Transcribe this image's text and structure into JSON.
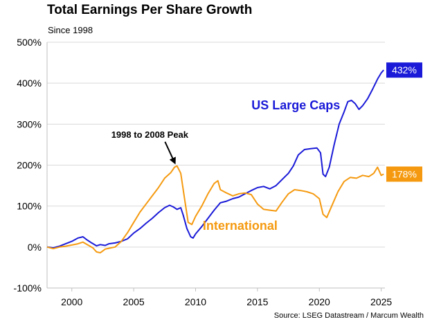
{
  "chart_data": {
    "type": "line",
    "title": "Total Earnings Per Share Growth",
    "subtitle": "Since 1998",
    "source": "Source: LSEG Datastream / Marcum Wealth",
    "xlabel": "",
    "ylabel": "",
    "xlim": [
      1998,
      2025.3
    ],
    "ylim": [
      -100,
      500
    ],
    "y_ticks": [
      {
        "value": 500,
        "label": "500%"
      },
      {
        "value": 400,
        "label": "400%"
      },
      {
        "value": 300,
        "label": "300%"
      },
      {
        "value": 200,
        "label": "200%"
      },
      {
        "value": 100,
        "label": "100%"
      },
      {
        "value": 0,
        "label": "0%"
      },
      {
        "value": -100,
        "label": "-100%"
      }
    ],
    "x_ticks": [
      {
        "value": 2000,
        "label": "2000"
      },
      {
        "value": 2005,
        "label": "2005"
      },
      {
        "value": 2010,
        "label": "2010"
      },
      {
        "value": 2015,
        "label": "2015"
      },
      {
        "value": 2020,
        "label": "2020"
      },
      {
        "value": 2025,
        "label": "2025"
      }
    ],
    "grid": true,
    "series": [
      {
        "name": "US Large Caps",
        "color": "#1a1ad8",
        "end_label": "432%",
        "points": [
          [
            1998.0,
            0
          ],
          [
            1998.5,
            -2
          ],
          [
            1999.0,
            2
          ],
          [
            1999.5,
            8
          ],
          [
            2000.0,
            14
          ],
          [
            2000.5,
            22
          ],
          [
            2000.9,
            25
          ],
          [
            2001.2,
            18
          ],
          [
            2001.6,
            10
          ],
          [
            2002.0,
            3
          ],
          [
            2002.3,
            6
          ],
          [
            2002.7,
            4
          ],
          [
            2003.0,
            8
          ],
          [
            2003.5,
            10
          ],
          [
            2004.0,
            14
          ],
          [
            2004.5,
            20
          ],
          [
            2005.0,
            34
          ],
          [
            2005.5,
            45
          ],
          [
            2006.0,
            58
          ],
          [
            2006.5,
            70
          ],
          [
            2007.0,
            84
          ],
          [
            2007.5,
            96
          ],
          [
            2007.9,
            102
          ],
          [
            2008.2,
            98
          ],
          [
            2008.5,
            92
          ],
          [
            2008.8,
            96
          ],
          [
            2009.0,
            78
          ],
          [
            2009.3,
            45
          ],
          [
            2009.6,
            25
          ],
          [
            2009.8,
            22
          ],
          [
            2010.0,
            32
          ],
          [
            2010.5,
            50
          ],
          [
            2011.0,
            70
          ],
          [
            2011.5,
            90
          ],
          [
            2012.0,
            108
          ],
          [
            2012.5,
            112
          ],
          [
            2013.0,
            118
          ],
          [
            2013.5,
            122
          ],
          [
            2014.0,
            130
          ],
          [
            2014.5,
            138
          ],
          [
            2015.0,
            145
          ],
          [
            2015.5,
            148
          ],
          [
            2016.0,
            142
          ],
          [
            2016.5,
            150
          ],
          [
            2017.0,
            165
          ],
          [
            2017.5,
            180
          ],
          [
            2017.9,
            198
          ],
          [
            2018.3,
            225
          ],
          [
            2018.8,
            238
          ],
          [
            2019.3,
            240
          ],
          [
            2019.8,
            242
          ],
          [
            2020.1,
            230
          ],
          [
            2020.3,
            178
          ],
          [
            2020.5,
            172
          ],
          [
            2020.8,
            195
          ],
          [
            2021.2,
            250
          ],
          [
            2021.6,
            300
          ],
          [
            2022.0,
            330
          ],
          [
            2022.3,
            355
          ],
          [
            2022.6,
            358
          ],
          [
            2022.9,
            350
          ],
          [
            2023.2,
            336
          ],
          [
            2023.5,
            345
          ],
          [
            2023.9,
            362
          ],
          [
            2024.3,
            385
          ],
          [
            2024.7,
            410
          ],
          [
            2025.0,
            425
          ],
          [
            2025.2,
            432
          ]
        ]
      },
      {
        "name": "International",
        "color": "#f59a10",
        "end_label": "178%",
        "points": [
          [
            1998.0,
            0
          ],
          [
            1998.5,
            -4
          ],
          [
            1999.0,
            0
          ],
          [
            1999.5,
            2
          ],
          [
            2000.0,
            5
          ],
          [
            2000.5,
            8
          ],
          [
            2000.9,
            12
          ],
          [
            2001.3,
            5
          ],
          [
            2001.7,
            -2
          ],
          [
            2002.0,
            -12
          ],
          [
            2002.3,
            -14
          ],
          [
            2002.7,
            -5
          ],
          [
            2003.0,
            -3
          ],
          [
            2003.5,
            0
          ],
          [
            2004.0,
            14
          ],
          [
            2004.5,
            35
          ],
          [
            2005.0,
            60
          ],
          [
            2005.5,
            85
          ],
          [
            2006.0,
            105
          ],
          [
            2006.5,
            125
          ],
          [
            2007.0,
            145
          ],
          [
            2007.5,
            168
          ],
          [
            2008.0,
            182
          ],
          [
            2008.3,
            195
          ],
          [
            2008.5,
            198
          ],
          [
            2008.8,
            180
          ],
          [
            2009.1,
            120
          ],
          [
            2009.4,
            60
          ],
          [
            2009.7,
            55
          ],
          [
            2010.0,
            75
          ],
          [
            2010.5,
            100
          ],
          [
            2011.0,
            130
          ],
          [
            2011.5,
            155
          ],
          [
            2011.8,
            162
          ],
          [
            2012.0,
            140
          ],
          [
            2012.5,
            132
          ],
          [
            2013.0,
            125
          ],
          [
            2013.5,
            130
          ],
          [
            2014.0,
            132
          ],
          [
            2014.5,
            128
          ],
          [
            2015.0,
            105
          ],
          [
            2015.5,
            92
          ],
          [
            2016.0,
            90
          ],
          [
            2016.5,
            88
          ],
          [
            2017.0,
            110
          ],
          [
            2017.5,
            130
          ],
          [
            2018.0,
            140
          ],
          [
            2018.5,
            138
          ],
          [
            2019.0,
            135
          ],
          [
            2019.5,
            130
          ],
          [
            2020.0,
            118
          ],
          [
            2020.3,
            80
          ],
          [
            2020.6,
            72
          ],
          [
            2021.0,
            100
          ],
          [
            2021.5,
            135
          ],
          [
            2022.0,
            160
          ],
          [
            2022.5,
            170
          ],
          [
            2023.0,
            168
          ],
          [
            2023.5,
            175
          ],
          [
            2024.0,
            172
          ],
          [
            2024.4,
            180
          ],
          [
            2024.7,
            195
          ],
          [
            2025.0,
            175
          ],
          [
            2025.2,
            178
          ]
        ]
      }
    ],
    "annotations": [
      {
        "text": "US Large Caps",
        "x": 2018.1,
        "y": 336,
        "color": "#1a1ad8"
      },
      {
        "text": "International",
        "x": 2013.6,
        "y": 42,
        "color": "#f59a10"
      },
      {
        "text": "1998 to 2008 Peak",
        "x": 2006.3,
        "y": 267,
        "color": "#000000",
        "arrow_to": [
          2008.5,
          198
        ]
      }
    ]
  }
}
